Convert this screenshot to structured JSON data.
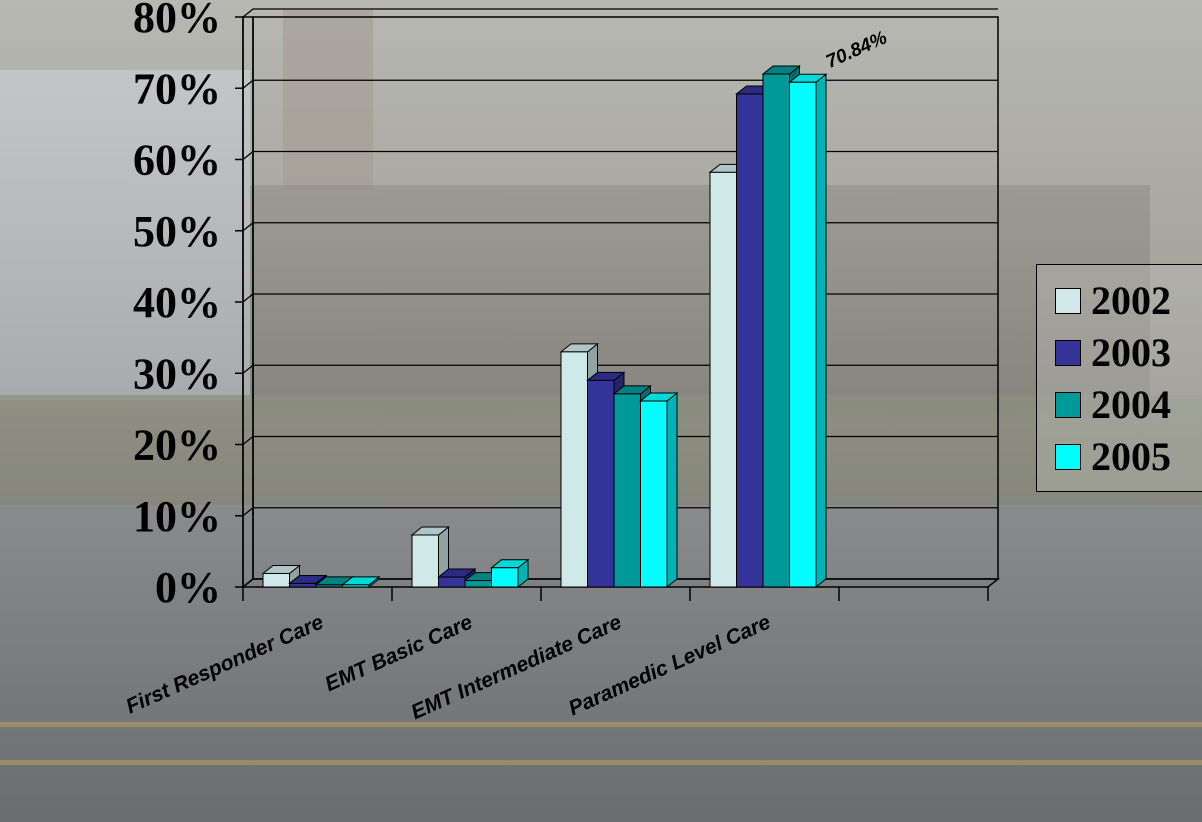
{
  "chart_data": {
    "type": "bar",
    "title": "",
    "xlabel": "",
    "ylabel": "",
    "ylim": [
      0,
      80
    ],
    "y_ticks": [
      "0%",
      "10%",
      "20%",
      "30%",
      "40%",
      "50%",
      "60%",
      "70%",
      "80%"
    ],
    "categories": [
      "First Responder Care",
      "EMT Basic Care",
      "EMT Intermediate Care",
      "Paramedic Level Care"
    ],
    "series": [
      {
        "name": "2002",
        "color": "#cfe9e9",
        "values": [
          1.9,
          7.3,
          33.0,
          58.2
        ]
      },
      {
        "name": "2003",
        "color": "#333399",
        "values": [
          0.5,
          1.4,
          29.0,
          69.2
        ]
      },
      {
        "name": "2004",
        "color": "#009999",
        "values": [
          0.3,
          0.9,
          27.1,
          72.0
        ]
      },
      {
        "name": "2005",
        "color": "#00ffff",
        "values": [
          0.3,
          2.7,
          26.1,
          70.84
        ]
      }
    ],
    "annotations": [
      {
        "text": "70.84%",
        "series": "2005",
        "category": "Paramedic Level Care"
      }
    ],
    "grid": true,
    "legend_position": "right"
  }
}
